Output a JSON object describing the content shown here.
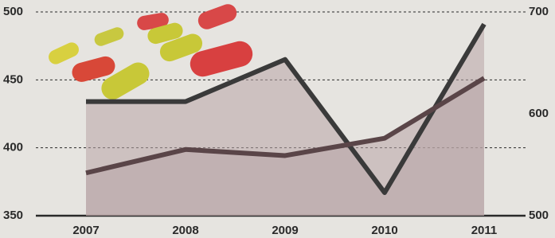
{
  "chart_data": {
    "type": "line",
    "categories": [
      "2007",
      "2008",
      "2009",
      "2010",
      "2011"
    ],
    "series": [
      {
        "color": "#3a3a3a",
        "values": [
          434,
          434,
          465,
          367,
          491
        ]
      },
      {
        "color": "#5a4548",
        "values": [
          542,
          565,
          559,
          576,
          635
        ],
        "axis": "y2"
      }
    ],
    "ylim": [
      350,
      500
    ],
    "yticks": [
      350,
      400,
      450,
      500
    ],
    "y2lim": [
      500,
      700
    ],
    "y2ticks": [
      500,
      600,
      700
    ],
    "grid": true,
    "area_color": "#b8a4a6"
  }
}
